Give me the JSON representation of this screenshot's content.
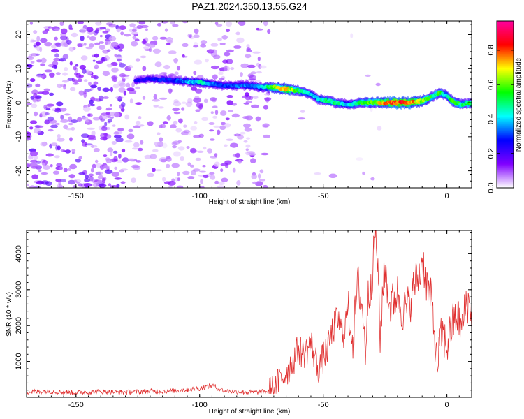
{
  "chart_data": [
    {
      "type": "heatmap",
      "title": "PAZ1.2024.350.13.55.G24",
      "xlabel": "Height of straight line (km)",
      "ylabel": "Frequency (Hz)",
      "xlim": [
        -170,
        10
      ],
      "ylim": [
        -25,
        24
      ],
      "x_ticks": [
        "-150",
        "-100",
        "-50",
        "0"
      ],
      "y_ticks": [
        "20",
        "10",
        "0",
        "-10",
        "-20"
      ],
      "colorbar": {
        "label": "Normalized spectral amplitude",
        "range": [
          0,
          0.97
        ],
        "ticks": [
          "0.0",
          "0.2",
          "0.4",
          "0.6",
          "0.8"
        ],
        "colors": [
          "#ffffff",
          "#8000ff",
          "#0000ff",
          "#00ffff",
          "#00ff00",
          "#ffff00",
          "#ff0000",
          "#ff00a0"
        ]
      },
      "ridge": {
        "x": [
          -126,
          -120,
          -110,
          -100,
          -95,
          -90,
          -85,
          -80,
          -75,
          -70,
          -65,
          -60,
          -55,
          -52,
          -48,
          -45,
          -40,
          -35,
          -30,
          -25,
          -20,
          -15,
          -10,
          -5,
          -3,
          0,
          3,
          6,
          10
        ],
        "freq": [
          6.5,
          7,
          6.5,
          6,
          5.5,
          5,
          5,
          5,
          4.5,
          4.5,
          4,
          3.5,
          2.5,
          1,
          0.5,
          0,
          -0.5,
          0,
          0,
          0,
          0,
          0,
          0.5,
          2,
          3,
          2,
          0,
          -0.5,
          0
        ],
        "amplitude": [
          0.25,
          0.28,
          0.3,
          0.45,
          0.35,
          0.3,
          0.35,
          0.35,
          0.4,
          0.6,
          0.75,
          0.55,
          0.4,
          0.45,
          0.5,
          0.5,
          0.4,
          0.55,
          0.6,
          0.75,
          0.85,
          0.8,
          0.65,
          0.5,
          0.55,
          0.45,
          0.6,
          0.5,
          0.55
        ]
      }
    },
    {
      "type": "line",
      "xlabel": "Height of straight line (km)",
      "ylabel": "SNR (10 * v/v)",
      "xlim": [
        -170,
        10
      ],
      "ylim": [
        0,
        4650
      ],
      "x_ticks": [
        "-150",
        "-100",
        "-50",
        "0"
      ],
      "y_ticks": [
        "1000",
        "2000",
        "3000",
        "4000"
      ],
      "series": [
        {
          "color": "#e03030",
          "x": [
            -170,
            -160,
            -150,
            -140,
            -130,
            -120,
            -110,
            -100,
            -95,
            -90,
            -85,
            -80,
            -75,
            -70,
            -68,
            -65,
            -63,
            -60,
            -58,
            -55,
            -52,
            -50,
            -48,
            -46,
            -44,
            -42,
            -40,
            -38,
            -36,
            -34,
            -33,
            -32,
            -30,
            -29,
            -28,
            -27,
            -26,
            -25,
            -23,
            -20,
            -18,
            -15,
            -13,
            -11,
            -10,
            -8,
            -6,
            -4,
            -2,
            0,
            2,
            4,
            6,
            8,
            10
          ],
          "y": [
            150,
            170,
            130,
            160,
            140,
            170,
            180,
            250,
            330,
            180,
            160,
            140,
            150,
            180,
            420,
            700,
            900,
            1350,
            1200,
            1500,
            800,
            1100,
            1400,
            1900,
            2200,
            1700,
            2500,
            1600,
            3200,
            2400,
            1200,
            2700,
            3500,
            4650,
            3800,
            1500,
            3000,
            3600,
            2500,
            2900,
            2400,
            2600,
            3200,
            3400,
            3900,
            3100,
            2600,
            900,
            1800,
            1400,
            2000,
            2300,
            1900,
            2700,
            2400
          ]
        }
      ]
    }
  ]
}
